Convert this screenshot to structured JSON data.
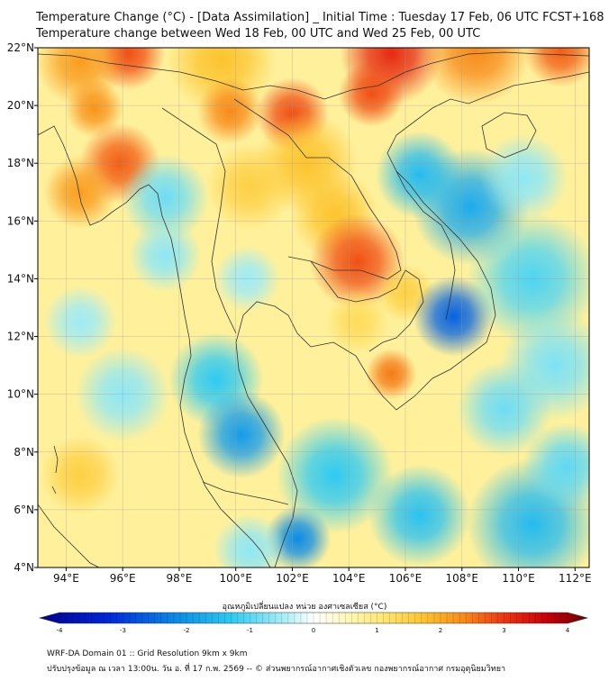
{
  "header": {
    "title_line1": "Temperature Change (°C) - [Data Assimilation] _ Initial Time : Tuesday 17 Feb, 06 UTC FCST+168",
    "title_line2": "Temperature change between Wed 18 Feb, 00 UTC and Wed 25 Feb, 00 UTC"
  },
  "map": {
    "lon_range": [
      93,
      112.5
    ],
    "lat_range": [
      4,
      22
    ],
    "lon_ticks": [
      {
        "value": 94,
        "label": "94°E"
      },
      {
        "value": 96,
        "label": "96°E"
      },
      {
        "value": 98,
        "label": "98°E"
      },
      {
        "value": 100,
        "label": "100°E"
      },
      {
        "value": 102,
        "label": "102°E"
      },
      {
        "value": 104,
        "label": "104°E"
      },
      {
        "value": 106,
        "label": "106°E"
      },
      {
        "value": 108,
        "label": "108°E"
      },
      {
        "value": 110,
        "label": "110°E"
      },
      {
        "value": 112,
        "label": "112°E"
      }
    ],
    "lat_ticks": [
      {
        "value": 4,
        "label": "4°N"
      },
      {
        "value": 6,
        "label": "6°N"
      },
      {
        "value": 8,
        "label": "8°N"
      },
      {
        "value": 10,
        "label": "10°N"
      },
      {
        "value": 12,
        "label": "12°N"
      },
      {
        "value": 14,
        "label": "14°N"
      },
      {
        "value": 16,
        "label": "16°N"
      },
      {
        "value": 18,
        "label": "18°N"
      },
      {
        "value": 20,
        "label": "20°N"
      },
      {
        "value": 22,
        "label": "22°N"
      }
    ],
    "background_value": 0.7,
    "anomalies": [
      {
        "lon": 96.2,
        "lat": 21.8,
        "value": 2.6,
        "r": 1.0
      },
      {
        "lon": 94.5,
        "lat": 21.5,
        "value": 2.0,
        "r": 1.2
      },
      {
        "lon": 99.5,
        "lat": 21.6,
        "value": 1.6,
        "r": 1.5
      },
      {
        "lon": 105.5,
        "lat": 21.8,
        "value": 2.9,
        "r": 1.4
      },
      {
        "lon": 104.8,
        "lat": 20.4,
        "value": 2.6,
        "r": 0.9
      },
      {
        "lon": 108.5,
        "lat": 21.9,
        "value": 2.2,
        "r": 1.5
      },
      {
        "lon": 111.5,
        "lat": 21.9,
        "value": 2.5,
        "r": 1.0
      },
      {
        "lon": 95.0,
        "lat": 19.9,
        "value": 2.1,
        "r": 0.8
      },
      {
        "lon": 95.9,
        "lat": 18.0,
        "value": 2.5,
        "r": 1.1
      },
      {
        "lon": 94.5,
        "lat": 17.0,
        "value": 2.0,
        "r": 1.0
      },
      {
        "lon": 99.8,
        "lat": 19.8,
        "value": 2.2,
        "r": 0.9
      },
      {
        "lon": 102.0,
        "lat": 19.7,
        "value": 2.6,
        "r": 1.0
      },
      {
        "lon": 102.5,
        "lat": 18.0,
        "value": 1.6,
        "r": 1.4
      },
      {
        "lon": 100.5,
        "lat": 17.2,
        "value": 1.4,
        "r": 1.2
      },
      {
        "lon": 103.5,
        "lat": 16.2,
        "value": 1.6,
        "r": 1.2
      },
      {
        "lon": 104.3,
        "lat": 14.6,
        "value": 2.6,
        "r": 1.3
      },
      {
        "lon": 106.0,
        "lat": 13.5,
        "value": 1.4,
        "r": 0.8
      },
      {
        "lon": 105.5,
        "lat": 10.7,
        "value": 2.3,
        "r": 0.7
      },
      {
        "lon": 104.3,
        "lat": 12.5,
        "value": 1.2,
        "r": 0.9
      },
      {
        "lon": 94.5,
        "lat": 7.2,
        "value": 1.4,
        "r": 1.1
      },
      {
        "lon": 97.5,
        "lat": 16.8,
        "value": -0.8,
        "r": 1.2
      },
      {
        "lon": 97.5,
        "lat": 14.8,
        "value": -0.6,
        "r": 1.0
      },
      {
        "lon": 100.4,
        "lat": 14.0,
        "value": -0.5,
        "r": 0.9
      },
      {
        "lon": 107.7,
        "lat": 12.7,
        "value": -2.4,
        "r": 1.1
      },
      {
        "lon": 108.3,
        "lat": 16.5,
        "value": -1.6,
        "r": 1.6
      },
      {
        "lon": 106.5,
        "lat": 17.6,
        "value": -1.4,
        "r": 1.2
      },
      {
        "lon": 110.5,
        "lat": 14.0,
        "value": -1.0,
        "r": 1.8
      },
      {
        "lon": 110.2,
        "lat": 17.5,
        "value": -0.6,
        "r": 1.2
      },
      {
        "lon": 111.3,
        "lat": 11.0,
        "value": -0.7,
        "r": 1.5
      },
      {
        "lon": 109.5,
        "lat": 9.5,
        "value": -0.8,
        "r": 1.3
      },
      {
        "lon": 99.3,
        "lat": 10.5,
        "value": -1.2,
        "r": 1.3
      },
      {
        "lon": 100.2,
        "lat": 8.6,
        "value": -1.8,
        "r": 1.2
      },
      {
        "lon": 102.2,
        "lat": 5.0,
        "value": -2.0,
        "r": 0.9
      },
      {
        "lon": 103.5,
        "lat": 7.2,
        "value": -1.2,
        "r": 1.6
      },
      {
        "lon": 106.5,
        "lat": 5.8,
        "value": -1.3,
        "r": 1.4
      },
      {
        "lon": 110.5,
        "lat": 5.5,
        "value": -1.4,
        "r": 1.8
      },
      {
        "lon": 111.7,
        "lat": 7.5,
        "value": -0.9,
        "r": 1.2
      },
      {
        "lon": 96.0,
        "lat": 10.0,
        "value": -0.6,
        "r": 1.3
      },
      {
        "lon": 94.5,
        "lat": 12.5,
        "value": -0.5,
        "r": 1.0
      },
      {
        "lon": 100.5,
        "lat": 4.6,
        "value": -0.6,
        "r": 1.0
      }
    ]
  },
  "colorbar": {
    "title": "อุณหภูมิเปลี่ยนแปลง หน่วย องศาเซลเซียส (°C)",
    "min": -4,
    "max": 4,
    "tick_labels": [
      {
        "value": -4,
        "label": "-4"
      },
      {
        "value": -3,
        "label": "-3"
      },
      {
        "value": -2,
        "label": "-2"
      },
      {
        "value": -1,
        "label": "-1"
      },
      {
        "value": 0,
        "label": "0"
      },
      {
        "value": 1,
        "label": "1"
      },
      {
        "value": 2,
        "label": "2"
      },
      {
        "value": 3,
        "label": "3"
      },
      {
        "value": 4,
        "label": "4"
      }
    ],
    "color_stops": [
      {
        "value": -4,
        "color": "#00008c"
      },
      {
        "value": -3,
        "color": "#0026d9"
      },
      {
        "value": -2,
        "color": "#0a8ce6"
      },
      {
        "value": -1.2,
        "color": "#2ecaf2"
      },
      {
        "value": -0.4,
        "color": "#aef0f7"
      },
      {
        "value": 0,
        "color": "#ffffff"
      },
      {
        "value": 0.5,
        "color": "#fff7b8"
      },
      {
        "value": 1,
        "color": "#ffe873"
      },
      {
        "value": 1.6,
        "color": "#fcc42e"
      },
      {
        "value": 2.2,
        "color": "#f78a18"
      },
      {
        "value": 2.8,
        "color": "#ec3212"
      },
      {
        "value": 3.4,
        "color": "#c8000a"
      },
      {
        "value": 4,
        "color": "#6a0000"
      }
    ]
  },
  "footer": {
    "line1": "WRF-DA Domain 01 :: Grid Resolution 9km x 9km",
    "line2": "ปรับปรุงข้อมูล ณ เวลา 13:00น. วัน อ. ที่ 17 ก.พ. 2569 -- © ส่วนพยากรณ์อากาศเชิงตัวเลข กองพยากรณ์อากาศ กรมอุตุนิยมวิทยา"
  }
}
